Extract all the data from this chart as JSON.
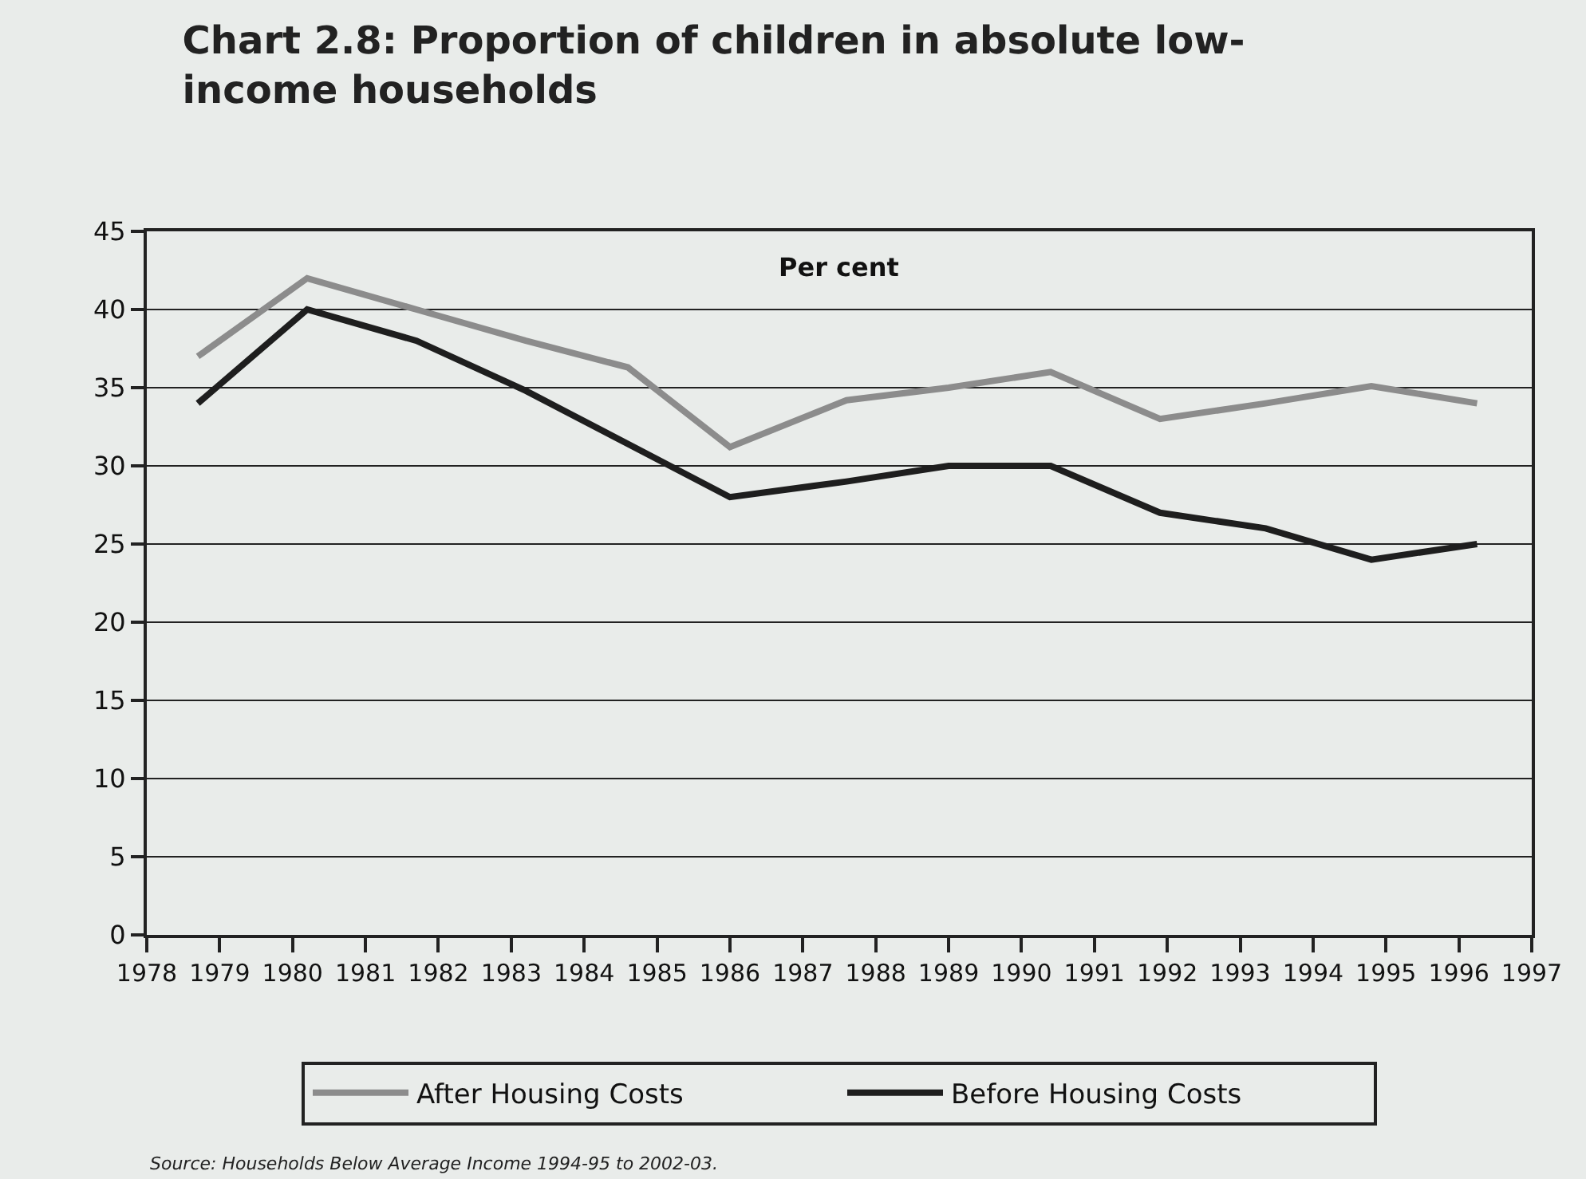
{
  "chart_data": {
    "type": "line",
    "title": "Chart 2.8: Proportion of children in absolute low-income households",
    "x": [
      1978.7,
      1980.2,
      1981.7,
      1983.2,
      1984.6,
      1986.0,
      1987.6,
      1989.0,
      1990.4,
      1991.9,
      1993.35,
      1994.8,
      1996.25
    ],
    "series": [
      {
        "name": "After Housing Costs",
        "color": "#8c8c8c",
        "values": [
          37,
          42,
          40,
          38,
          36.3,
          31.2,
          34.2,
          35,
          36,
          33,
          34,
          35.1,
          34
        ]
      },
      {
        "name": "Before Housing Costs",
        "color": "#1e1e1e",
        "values": [
          34,
          40,
          38,
          34.8,
          31.4,
          28,
          29,
          30,
          30,
          27,
          26,
          24,
          25
        ]
      }
    ],
    "xlim": [
      1978,
      1997
    ],
    "xticks": [
      1978,
      1979,
      1980,
      1981,
      1982,
      1983,
      1984,
      1985,
      1986,
      1987,
      1988,
      1989,
      1990,
      1991,
      1992,
      1993,
      1994,
      1995,
      1996,
      1997
    ],
    "ylim": [
      0,
      45
    ],
    "yticks": [
      0,
      5,
      10,
      15,
      20,
      25,
      30,
      35,
      40,
      45
    ],
    "ylabel": "Per cent",
    "annotations": [
      "Source: Households Below Average Income 1994-95 to 2002-03."
    ],
    "grid": "y",
    "legend": "bottom",
    "marker": "none",
    "line_style": "solid"
  }
}
